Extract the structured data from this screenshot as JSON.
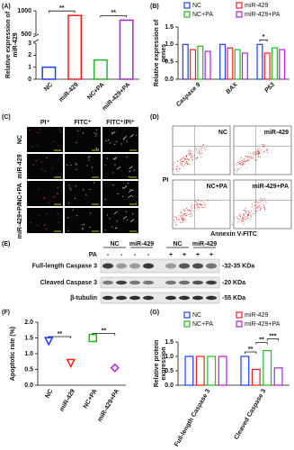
{
  "chart_data": [
    {
      "type": "bar",
      "label": "(A)",
      "ylabel": [
        "Relative expression of",
        "miR-429"
      ],
      "categories": [
        "NC",
        "miR-429",
        "NC+PA",
        "miR-429+PA"
      ],
      "values": [
        1.0,
        900,
        1.6,
        800
      ],
      "colors": [
        "#1a3cff",
        "#ff1a1a",
        "#22bb22",
        "#b01ee0"
      ],
      "ylim": [
        0,
        3
      ],
      "yticks": [
        0,
        1,
        2,
        3
      ],
      "axis_break": {
        "ylim": [
          500,
          1000
        ],
        "yticks": [
          500,
          1000
        ]
      },
      "annotations": [
        {
          "text": "**",
          "from": 0,
          "to": 1
        },
        {
          "text": "**",
          "from": 2,
          "to": 3
        }
      ]
    },
    {
      "type": "bar",
      "label": "(B)",
      "ylabel": [
        "Relative expression of",
        "genes"
      ],
      "categories": [
        "Caspase 9",
        "BAX",
        "P53"
      ],
      "series": [
        {
          "name": "NC",
          "color": "#1a3cff",
          "values": [
            1.0,
            1.0,
            1.0
          ]
        },
        {
          "name": "miR-429",
          "color": "#ff1a1a",
          "values": [
            0.85,
            0.9,
            0.75
          ]
        },
        {
          "name": "NC+PA",
          "color": "#22bb22",
          "values": [
            0.95,
            0.85,
            0.9
          ]
        },
        {
          "name": "miR-429+PA",
          "color": "#b01ee0",
          "values": [
            0.8,
            0.75,
            0.85
          ]
        }
      ],
      "ylim": [
        0,
        1.5
      ],
      "yticks": [
        {
          "value": 0,
          "label": "0.0"
        },
        0.5,
        {
          "value": 1,
          "label": "1.0"
        },
        1.5
      ],
      "annotations": [
        {
          "text": "*",
          "category": 2,
          "from": 0,
          "to": 1
        }
      ]
    },
    {
      "type": "dot",
      "label": "(F)",
      "ylabel": [
        "Apoptotic rate (%)"
      ],
      "categories": [
        "NC",
        "miR-429",
        "NC+PA",
        "miR-429+PA"
      ],
      "values": [
        1.4,
        0.7,
        1.5,
        0.55
      ],
      "colors": [
        "#1a3cff",
        "#ff1a1a",
        "#22bb22",
        "#b01ee0"
      ],
      "markers": [
        "triangle-down",
        "triangle-down",
        "square",
        "diamond"
      ],
      "ylim": [
        0,
        2
      ],
      "yticks": [
        {
          "value": 0,
          "label": "0.0"
        },
        0.5,
        {
          "value": 1,
          "label": "1.0"
        },
        1.5,
        {
          "value": 2,
          "label": "2.0"
        }
      ],
      "annotations": [
        {
          "text": "**",
          "from": 0,
          "to": 1
        },
        {
          "text": "**",
          "from": 2,
          "to": 3
        }
      ]
    },
    {
      "type": "bar",
      "label": "(G)",
      "ylabel": [
        "Relative protein",
        "expression"
      ],
      "categories": [
        "Full-length Caspase 3",
        "Cleaved Caspase 3"
      ],
      "series": [
        {
          "name": "NC",
          "color": "#1a3cff",
          "values": [
            1.0,
            1.0
          ]
        },
        {
          "name": "miR-429",
          "color": "#ff1a1a",
          "values": [
            1.0,
            0.55
          ]
        },
        {
          "name": "NC+PA",
          "color": "#22bb22",
          "values": [
            1.0,
            1.2
          ]
        },
        {
          "name": "miR-429+PA",
          "color": "#b01ee0",
          "values": [
            1.0,
            0.6
          ]
        }
      ],
      "ylim": [
        0,
        1.5
      ],
      "yticks": [
        {
          "value": 0,
          "label": "0.0"
        },
        0.5,
        {
          "value": 1,
          "label": "1.0"
        },
        1.5
      ],
      "annotations": [
        {
          "text": "**",
          "category": 1,
          "from": 0,
          "to": 1
        },
        {
          "text": "**",
          "category": 1,
          "from": 1,
          "to": 2
        },
        {
          "text": "***",
          "category": 1,
          "from": 2,
          "to": 3
        }
      ]
    }
  ],
  "microscopy": {
    "label": "(C)",
    "columns": [
      "PI⁺",
      "FITC⁺",
      "FITC⁺/PI⁺"
    ],
    "rows": [
      "NC",
      "miR-429",
      "NC+PA",
      "miR-429+PA"
    ]
  },
  "flow": {
    "label": "(D)",
    "panels": [
      "NC",
      "miR-429",
      "NC+PA",
      "miR-429+PA"
    ],
    "ylabel": "PI",
    "xlabel": "Annexin V-FITC"
  },
  "blot": {
    "label": "(E)",
    "groups": [
      "NC",
      "miR-429",
      "NC",
      "miR-429"
    ],
    "treatment": "PA",
    "pa": [
      "-",
      "-",
      "-",
      "-",
      "+",
      "+",
      "+",
      "+"
    ],
    "proteins": [
      "Full-length Caspase 3",
      "Cleaved Caspase 3",
      "β-tubulin"
    ],
    "sizes": [
      "-32-35 KDa",
      "-20 KDa",
      "-55 KDa"
    ]
  }
}
